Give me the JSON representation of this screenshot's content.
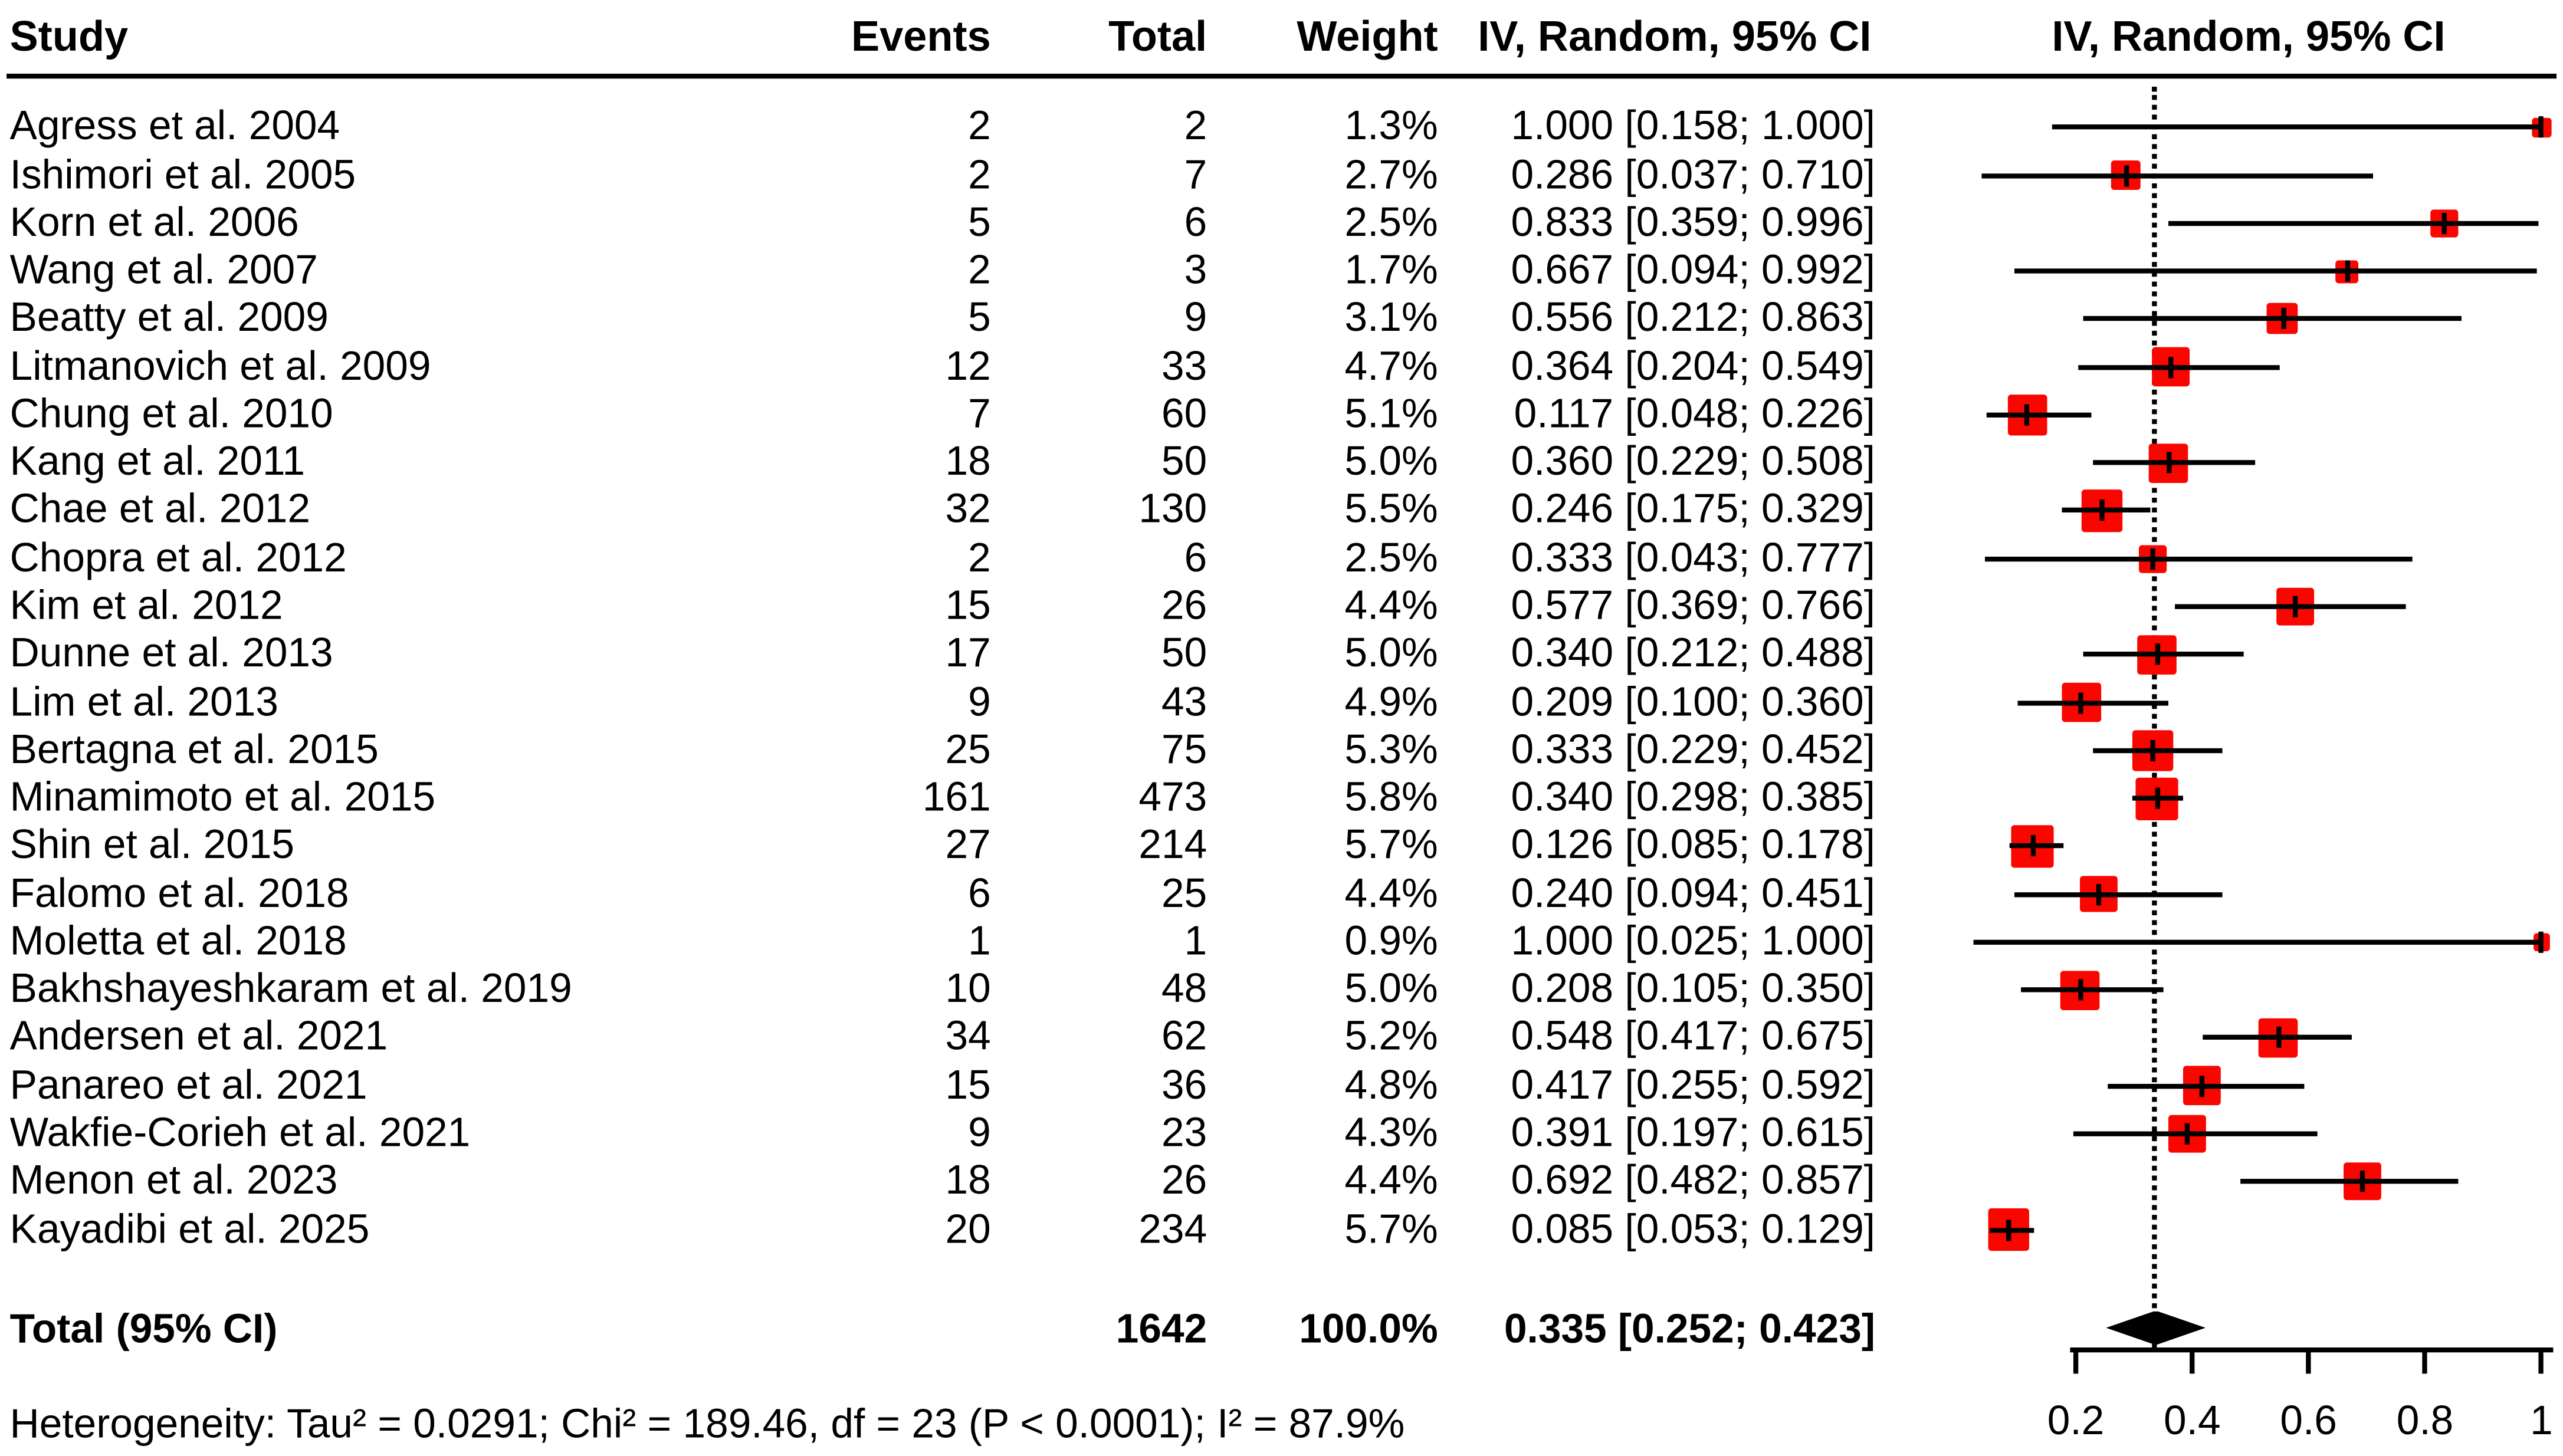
{
  "colors": {
    "marker_red": "#fa0600",
    "line_black": "#000000",
    "background": "#ffffff"
  },
  "columns": {
    "study": "Study",
    "events": "Events",
    "total": "Total",
    "weight": "Weight",
    "ci_text": "IV, Random, 95% CI",
    "ci_plot": "IV, Random, 95% CI"
  },
  "chart_data": {
    "type": "forest",
    "x_ticks": [
      0.2,
      0.4,
      0.6,
      0.8,
      1
    ],
    "x_tick_labels": [
      "0.2",
      "0.4",
      "0.6",
      "0.8",
      "1"
    ],
    "x_axis_drawn_range": [
      0.19,
      1.02
    ],
    "pooled_reference_line": 0.335,
    "legend": "squares sized by weight, horizontal lines = 95% CI, dotted line = pooled estimate, diamond = overall",
    "studies": [
      {
        "name": "Agress et al. 2004",
        "events": 2,
        "total": 2,
        "weight": 1.3,
        "est": 1.0,
        "lo": 0.158,
        "hi": 1.0
      },
      {
        "name": "Ishimori et al. 2005",
        "events": 2,
        "total": 7,
        "weight": 2.7,
        "est": 0.286,
        "lo": 0.037,
        "hi": 0.71
      },
      {
        "name": "Korn et al. 2006",
        "events": 5,
        "total": 6,
        "weight": 2.5,
        "est": 0.833,
        "lo": 0.359,
        "hi": 0.996
      },
      {
        "name": "Wang et al. 2007",
        "events": 2,
        "total": 3,
        "weight": 1.7,
        "est": 0.667,
        "lo": 0.094,
        "hi": 0.992
      },
      {
        "name": "Beatty et al. 2009",
        "events": 5,
        "total": 9,
        "weight": 3.1,
        "est": 0.556,
        "lo": 0.212,
        "hi": 0.863
      },
      {
        "name": "Litmanovich et al. 2009",
        "events": 12,
        "total": 33,
        "weight": 4.7,
        "est": 0.364,
        "lo": 0.204,
        "hi": 0.549
      },
      {
        "name": "Chung et al. 2010",
        "events": 7,
        "total": 60,
        "weight": 5.1,
        "est": 0.117,
        "lo": 0.048,
        "hi": 0.226
      },
      {
        "name": "Kang et al. 2011",
        "events": 18,
        "total": 50,
        "weight": 5.0,
        "est": 0.36,
        "lo": 0.229,
        "hi": 0.508
      },
      {
        "name": "Chae et al. 2012",
        "events": 32,
        "total": 130,
        "weight": 5.5,
        "est": 0.246,
        "lo": 0.175,
        "hi": 0.329
      },
      {
        "name": "Chopra et al. 2012",
        "events": 2,
        "total": 6,
        "weight": 2.5,
        "est": 0.333,
        "lo": 0.043,
        "hi": 0.777
      },
      {
        "name": "Kim et al. 2012",
        "events": 15,
        "total": 26,
        "weight": 4.4,
        "est": 0.577,
        "lo": 0.369,
        "hi": 0.766
      },
      {
        "name": "Dunne et al. 2013",
        "events": 17,
        "total": 50,
        "weight": 5.0,
        "est": 0.34,
        "lo": 0.212,
        "hi": 0.488
      },
      {
        "name": "Lim et al. 2013",
        "events": 9,
        "total": 43,
        "weight": 4.9,
        "est": 0.209,
        "lo": 0.1,
        "hi": 0.36
      },
      {
        "name": "Bertagna et al. 2015",
        "events": 25,
        "total": 75,
        "weight": 5.3,
        "est": 0.333,
        "lo": 0.229,
        "hi": 0.452
      },
      {
        "name": "Minamimoto et al. 2015",
        "events": 161,
        "total": 473,
        "weight": 5.8,
        "est": 0.34,
        "lo": 0.298,
        "hi": 0.385
      },
      {
        "name": "Shin et al. 2015",
        "events": 27,
        "total": 214,
        "weight": 5.7,
        "est": 0.126,
        "lo": 0.085,
        "hi": 0.178
      },
      {
        "name": "Falomo et al. 2018",
        "events": 6,
        "total": 25,
        "weight": 4.4,
        "est": 0.24,
        "lo": 0.094,
        "hi": 0.451
      },
      {
        "name": "Moletta et al. 2018",
        "events": 1,
        "total": 1,
        "weight": 0.9,
        "est": 1.0,
        "lo": 0.025,
        "hi": 1.0
      },
      {
        "name": "Bakhshayeshkaram et al. 2019",
        "events": 10,
        "total": 48,
        "weight": 5.0,
        "est": 0.208,
        "lo": 0.105,
        "hi": 0.35
      },
      {
        "name": "Andersen et al. 2021",
        "events": 34,
        "total": 62,
        "weight": 5.2,
        "est": 0.548,
        "lo": 0.417,
        "hi": 0.675
      },
      {
        "name": "Panareo et al. 2021",
        "events": 15,
        "total": 36,
        "weight": 4.8,
        "est": 0.417,
        "lo": 0.255,
        "hi": 0.592
      },
      {
        "name": "Wakfie-Corieh et al. 2021",
        "events": 9,
        "total": 23,
        "weight": 4.3,
        "est": 0.391,
        "lo": 0.197,
        "hi": 0.615
      },
      {
        "name": "Menon et al. 2023",
        "events": 18,
        "total": 26,
        "weight": 4.4,
        "est": 0.692,
        "lo": 0.482,
        "hi": 0.857
      },
      {
        "name": "Kayadibi et al. 2025",
        "events": 20,
        "total": 234,
        "weight": 5.7,
        "est": 0.085,
        "lo": 0.053,
        "hi": 0.129
      }
    ],
    "total": {
      "label": "Total (95% CI)",
      "total_label": "1642",
      "weight_label": "100.0%",
      "ci_label": "0.335 [0.252; 0.423]",
      "est": 0.335,
      "lo": 0.252,
      "hi": 0.423
    },
    "heterogeneity": "Heterogeneity: Tau² = 0.0291; Chi² = 189.46, df = 23 (P < 0.0001); I² = 87.9%"
  }
}
